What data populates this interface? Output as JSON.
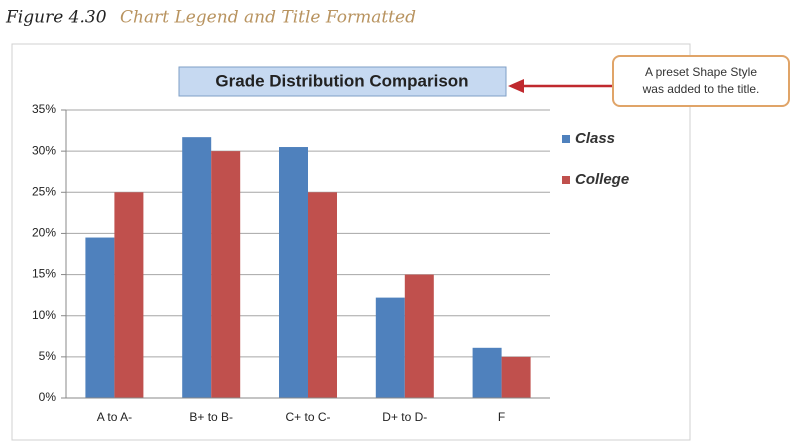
{
  "caption": {
    "number": "Figure 4.30",
    "text": "Chart Legend and Title Formatted"
  },
  "callout": {
    "lines": [
      "A preset Shape Style",
      "was added to the title."
    ]
  },
  "chart_data": {
    "type": "bar",
    "title": "Grade Distribution Comparison",
    "categories": [
      "A to A-",
      "B+ to B-",
      "C+ to C-",
      "D+ to D-",
      "F"
    ],
    "series": [
      {
        "name": "Class",
        "color": "#4f81bd",
        "values": [
          19.5,
          31.7,
          30.5,
          12.2,
          6.1
        ]
      },
      {
        "name": "College",
        "color": "#c0504d",
        "values": [
          25,
          30,
          25,
          15,
          5
        ]
      }
    ],
    "ylim": [
      0,
      35
    ],
    "yticks": [
      {
        "value": 0,
        "label": "0%"
      },
      {
        "value": 5,
        "label": "5%"
      },
      {
        "value": 10,
        "label": "10%"
      },
      {
        "value": 15,
        "label": "15%"
      },
      {
        "value": 20,
        "label": "20%"
      },
      {
        "value": 25,
        "label": "25%"
      },
      {
        "value": 30,
        "label": "30%"
      },
      {
        "value": 35,
        "label": "35%"
      }
    ],
    "grid": true,
    "legend": "right"
  }
}
